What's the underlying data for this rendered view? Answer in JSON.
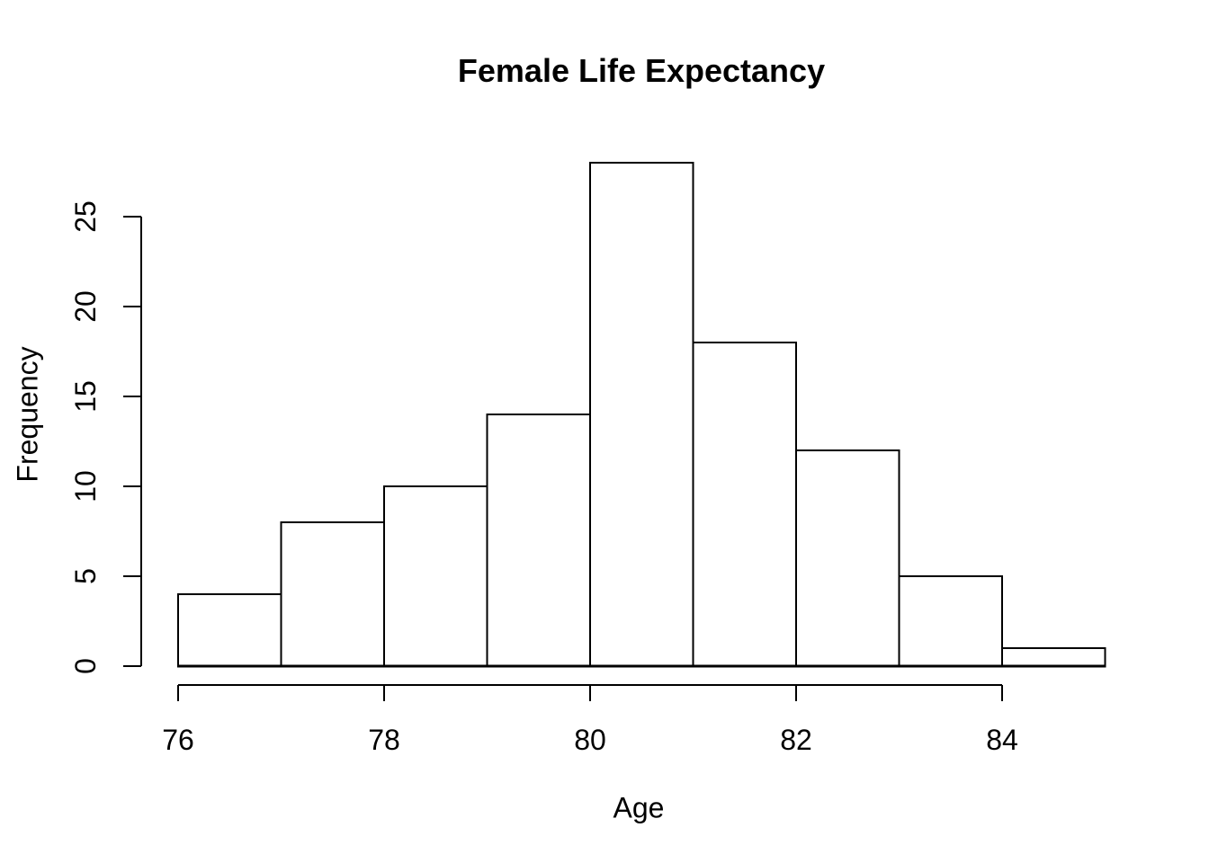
{
  "page": {
    "background": "#ffffff"
  },
  "chart_data": {
    "type": "bar",
    "subtype": "histogram",
    "title": "Female Life Expectancy",
    "xlabel": "Age",
    "ylabel": "Frequency",
    "bin_edges": [
      76,
      77,
      78,
      79,
      80,
      81,
      82,
      83,
      84,
      85
    ],
    "categories": [
      "76-77",
      "77-78",
      "78-79",
      "79-80",
      "80-81",
      "81-82",
      "82-83",
      "83-84",
      "84-85"
    ],
    "values": [
      4,
      8,
      10,
      14,
      28,
      18,
      12,
      5,
      1
    ],
    "x_ticks": [
      76,
      78,
      80,
      82,
      84
    ],
    "y_ticks": [
      0,
      5,
      10,
      15,
      20,
      25
    ],
    "xlim": [
      76,
      85
    ],
    "ylim": [
      0,
      28
    ],
    "grid": false,
    "legend": "none",
    "bar_fill": "#ffffff",
    "line_color": "#000000",
    "background": "#ffffff"
  }
}
